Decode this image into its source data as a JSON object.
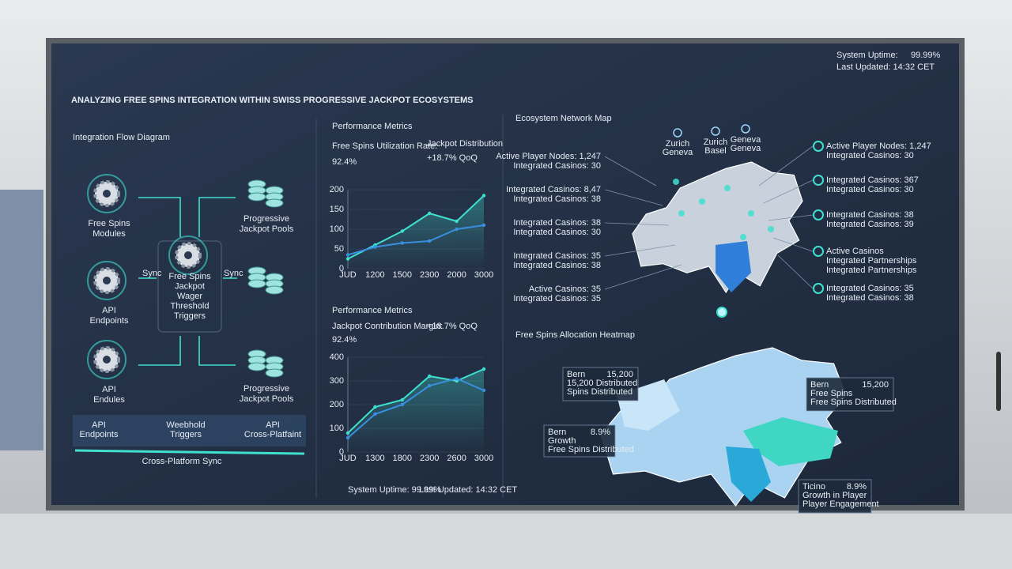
{
  "header": {
    "title": "ANALYZING FREE SPINS INTEGRATION WITHIN SWISS PROGRESSIVE JACKPOT ECOSYSTEMS",
    "uptime_label": "System Uptime:",
    "uptime_value": "99.99%",
    "updated": "Last Updated: 14:32 CET"
  },
  "flow": {
    "title": "Integration Flow Diagram",
    "modules": [
      [
        "Free Spins",
        "Modules"
      ],
      [
        "API",
        "Endpoints"
      ],
      [
        "API",
        "Endules"
      ]
    ],
    "pools": [
      [
        "Progressive",
        "Jackpot Pools"
      ],
      [
        "Progressive",
        "Jackpot Pools"
      ]
    ],
    "hub": [
      "Free Spins",
      "Jackpot",
      "Wager",
      "Threshold",
      "Triggers"
    ],
    "connector_labels": [
      "Sync",
      "Sync"
    ],
    "bar_labels": [
      [
        "API",
        "Endpoints"
      ],
      [
        "Weebhold",
        "Triggers"
      ],
      [
        "API",
        "Cross-Platfaint"
      ]
    ],
    "bar_caption": "Cross-Platform Sync"
  },
  "metrics": [
    {
      "title": "Performance Metrics",
      "kpis": [
        {
          "label": "Free Spins Utilization Rate:",
          "value": "92.4%"
        },
        {
          "label": "Jackpot Distribution",
          "value": "+18.7% QoQ"
        }
      ]
    },
    {
      "title": "Performance Metrics",
      "kpis": [
        {
          "label": "Jackpot Contribution Margin:",
          "value": "+18.7% QoQ"
        },
        {
          "value": "92.4%"
        }
      ]
    }
  ],
  "metrics_footer": {
    "uptime": "System Uptime: 99.99%",
    "updated": "Last Updated: 14:32 CET"
  },
  "chart_data": [
    {
      "type": "line",
      "categories": [
        "JUD",
        "1200",
        "1500",
        "2300",
        "2000",
        "3000"
      ],
      "ylim": [
        0,
        200
      ],
      "yticks": [
        0,
        50,
        100,
        150,
        200
      ],
      "series": [
        {
          "name": "Utilization",
          "color": "#3fe0d0",
          "values": [
            25,
            60,
            95,
            140,
            120,
            185
          ]
        },
        {
          "name": "Distribution",
          "color": "#3a8fe0",
          "values": [
            35,
            55,
            65,
            70,
            100,
            110
          ]
        }
      ]
    },
    {
      "type": "line",
      "categories": [
        "JUD",
        "1300",
        "1800",
        "2300",
        "2600",
        "3000"
      ],
      "ylim": [
        0,
        400
      ],
      "yticks": [
        0,
        100,
        200,
        300,
        400
      ],
      "series": [
        {
          "name": "Contribution",
          "color": "#3fe0d0",
          "values": [
            80,
            190,
            220,
            320,
            300,
            350
          ]
        },
        {
          "name": "Margin",
          "color": "#3a8fe0",
          "values": [
            60,
            160,
            200,
            280,
            310,
            260
          ]
        }
      ]
    }
  ],
  "network": {
    "title": "Ecosystem Network Map",
    "cities": [
      [
        "Zurich",
        "Geneva"
      ],
      [
        "Zurich",
        "Basel"
      ],
      [
        "Geneva",
        "Geneva"
      ]
    ],
    "left": [
      [
        "Active Player Nodes: 1,247",
        "Integrated Casinos: 30"
      ],
      [
        "Integrated Casinos: 8,47",
        "Integrated Casinos: 38"
      ],
      [
        "Integrated Casinos: 38",
        "Integrated Casinos: 30"
      ],
      [
        "Integrated Casinos: 35",
        "Integrated Casinos: 38"
      ],
      [
        "Active Casinos: 35",
        "Integrated Casinos: 35"
      ]
    ],
    "right": [
      [
        "Active Player Nodes: 1,247",
        "Integrated Casinos: 30"
      ],
      [
        "Integrated Casinos: 367",
        "Integrated Casinos: 30"
      ],
      [
        "Integrated Casinos: 38",
        "Integrated Casinos: 39"
      ],
      [
        "Active Casinos",
        "Integrated Partnerships",
        "Integrated Partnerships"
      ],
      [
        "Integrated Casinos: 35",
        "Integrated Casinos: 38"
      ]
    ]
  },
  "heatmap": {
    "title": "Free Spins Allocation Heatmap",
    "callouts": [
      {
        "lines": [
          "Bern",
          "15,200 Distributed",
          "Spins Distributed"
        ],
        "figure": "15,200"
      },
      {
        "lines": [
          "Bern",
          "Free Spins",
          "Free Spins Distributed"
        ],
        "figure": "15,200"
      },
      {
        "lines": [
          "Bern",
          "Growth",
          "Free Spins Distributed"
        ],
        "figure": "8.9%"
      },
      {
        "lines": [
          "Ticino",
          "Growth in Player",
          "Player Engagement"
        ],
        "figure": "8.9%"
      }
    ]
  }
}
